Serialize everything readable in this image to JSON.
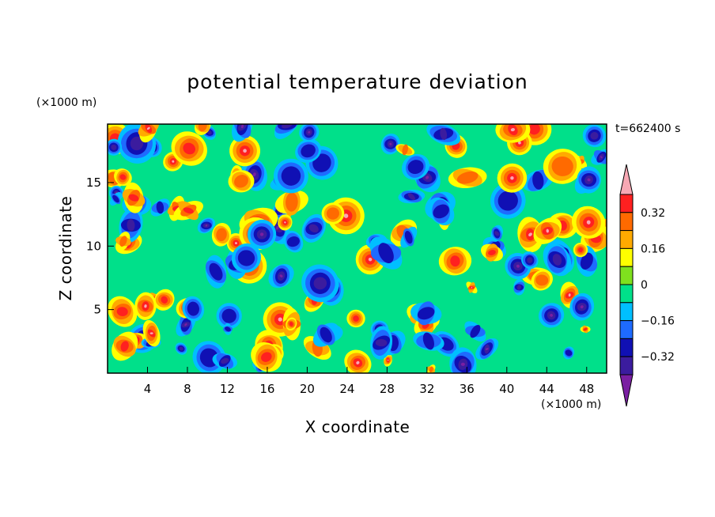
{
  "chart_data": {
    "type": "heatmap",
    "title": "potential temperature deviation",
    "xlabel": "X coordinate",
    "ylabel": "Z coordinate",
    "x_unit": "(×1000 m)",
    "y_unit": "(×1000 m)",
    "time_label": "t=662400 s",
    "xlim": [
      0,
      50
    ],
    "ylim": [
      0,
      19.6
    ],
    "x_ticks": [
      4,
      8,
      12,
      16,
      20,
      24,
      28,
      32,
      36,
      40,
      44,
      48
    ],
    "y_ticks": [
      5,
      10,
      15
    ],
    "colorbar": {
      "levels": [
        -0.4,
        -0.32,
        -0.24,
        -0.16,
        -0.08,
        0,
        0.08,
        0.16,
        0.24,
        0.32,
        0.4
      ],
      "labeled": [
        -0.32,
        -0.16,
        0,
        0.16,
        0.32
      ],
      "colors": [
        "#7a1fa2",
        "#3b1c9e",
        "#1010b4",
        "#1e6bff",
        "#00bfff",
        "#00e08a",
        "#7fe01e",
        "#ffff00",
        "#ffaa00",
        "#ff6a00",
        "#ff2020",
        "#f7a8b4"
      ]
    }
  }
}
